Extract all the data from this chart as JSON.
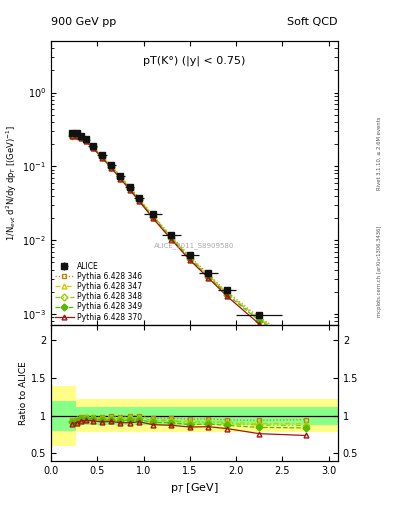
{
  "title_left": "900 GeV pp",
  "title_right": "Soft QCD",
  "annotation": "pT(K°) (|y| < 0.75)",
  "watermark": "ALICE_2011_S8909580",
  "right_label_top": "Rivet 3.1.10, ≥ 2.6M events",
  "right_label_bot": "mcplots.cern.ch [arXiv:1306.3436]",
  "ylabel_main": "1/N$_{evt}$ d$^{2}$N/dy dp$_{T}$ [(GeV)$^{-1}$]",
  "ylabel_ratio": "Ratio to ALICE",
  "xlabel": "p$_{T}$ [GeV]",
  "xlim": [
    0.0,
    3.1
  ],
  "ylim_main": [
    0.0007,
    5.0
  ],
  "ylim_ratio": [
    0.4,
    2.2
  ],
  "ratio_yticks": [
    0.5,
    1.0,
    1.5,
    2.0
  ],
  "ratio_yticklabels": [
    "0.5",
    "1",
    "1.5",
    "2"
  ],
  "alice_x": [
    0.225,
    0.275,
    0.325,
    0.375,
    0.45,
    0.55,
    0.65,
    0.75,
    0.85,
    0.95,
    1.1,
    1.3,
    1.5,
    1.7,
    1.9,
    2.25,
    2.75
  ],
  "alice_y": [
    0.285,
    0.28,
    0.26,
    0.235,
    0.19,
    0.143,
    0.103,
    0.075,
    0.053,
    0.037,
    0.0225,
    0.0117,
    0.0063,
    0.0036,
    0.0021,
    0.00096,
    0.00038
  ],
  "alice_yerr": [
    0.016,
    0.015,
    0.013,
    0.012,
    0.009,
    0.007,
    0.005,
    0.004,
    0.003,
    0.002,
    0.0012,
    0.0006,
    0.00033,
    0.0002,
    0.00012,
    8e-05,
    4e-05
  ],
  "alice_xerr_lo": [
    0.025,
    0.025,
    0.025,
    0.025,
    0.05,
    0.05,
    0.05,
    0.05,
    0.05,
    0.05,
    0.1,
    0.1,
    0.1,
    0.1,
    0.1,
    0.25,
    0.25
  ],
  "alice_xerr_hi": [
    0.025,
    0.025,
    0.025,
    0.025,
    0.05,
    0.05,
    0.05,
    0.05,
    0.05,
    0.05,
    0.1,
    0.1,
    0.1,
    0.1,
    0.1,
    0.25,
    0.25
  ],
  "pythia_x": [
    0.225,
    0.275,
    0.325,
    0.375,
    0.45,
    0.55,
    0.65,
    0.75,
    0.85,
    0.95,
    1.1,
    1.3,
    1.5,
    1.7,
    1.9,
    2.25,
    2.75
  ],
  "p346_y": [
    0.27,
    0.268,
    0.255,
    0.232,
    0.187,
    0.14,
    0.102,
    0.074,
    0.053,
    0.037,
    0.0218,
    0.0113,
    0.006,
    0.00345,
    0.00198,
    0.0009,
    0.00036
  ],
  "p347_y": [
    0.268,
    0.266,
    0.253,
    0.23,
    0.185,
    0.138,
    0.1,
    0.073,
    0.052,
    0.036,
    0.0213,
    0.011,
    0.0058,
    0.00335,
    0.00192,
    0.00086,
    0.00034
  ],
  "p348_y": [
    0.263,
    0.262,
    0.249,
    0.227,
    0.183,
    0.136,
    0.099,
    0.072,
    0.051,
    0.036,
    0.021,
    0.0109,
    0.0057,
    0.0033,
    0.00188,
    0.00084,
    0.00033
  ],
  "p349_y": [
    0.261,
    0.26,
    0.247,
    0.225,
    0.181,
    0.134,
    0.097,
    0.07,
    0.05,
    0.035,
    0.0205,
    0.0106,
    0.00555,
    0.0032,
    0.00183,
    0.00081,
    0.000318
  ],
  "p370_y": [
    0.255,
    0.254,
    0.242,
    0.22,
    0.177,
    0.131,
    0.095,
    0.068,
    0.048,
    0.034,
    0.0198,
    0.0102,
    0.00535,
    0.00307,
    0.00174,
    0.00073,
    0.00028
  ],
  "p346_color": "#b8860b",
  "p347_color": "#cccc00",
  "p348_color": "#99cc00",
  "p349_color": "#55bb00",
  "p370_color": "#aa1111",
  "alice_color": "#111111",
  "band_yellow": "#ffff88",
  "band_green": "#88ff88",
  "band_yellow_lo": 0.78,
  "band_yellow_hi": 1.22,
  "band_green_lo": 0.88,
  "band_green_hi": 1.12
}
